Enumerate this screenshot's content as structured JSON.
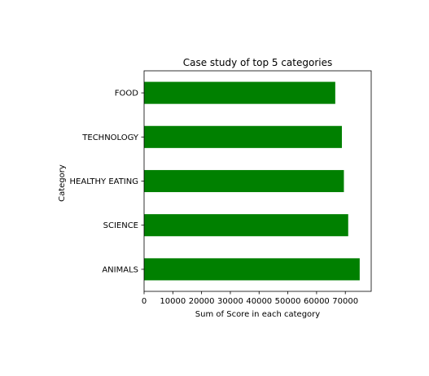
{
  "chart_data": {
    "type": "bar",
    "orientation": "horizontal",
    "title": "Case study of top 5 categories",
    "xlabel": "Sum of Score in each category",
    "ylabel": "Category",
    "categories": [
      "ANIMALS",
      "SCIENCE",
      "HEALTHY EATING",
      "TECHNOLOGY",
      "FOOD"
    ],
    "values": [
      75000,
      71000,
      69500,
      68800,
      66500
    ],
    "xlim": [
      0,
      79000
    ],
    "xticks": [
      0,
      10000,
      20000,
      30000,
      40000,
      50000,
      60000,
      70000
    ],
    "xtick_labels": [
      "0",
      "10000",
      "20000",
      "30000",
      "40000",
      "50000",
      "60000",
      "70000"
    ],
    "bar_color": "#008000",
    "grid": false,
    "legend": "none"
  }
}
